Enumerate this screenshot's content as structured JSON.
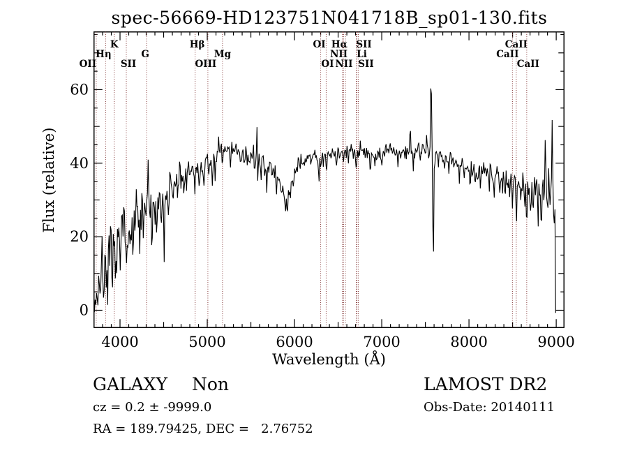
{
  "chart_data": {
    "type": "line",
    "title": "spec-56669-HD123751N041718B_sp01-130.fits",
    "xlabel": "Wavelength (Å)",
    "ylabel": "Flux (relative)",
    "xlim": [
      3702,
      9089
    ],
    "ylim": [
      -4.7,
      75.7
    ],
    "xticks": [
      4000,
      5000,
      6000,
      7000,
      8000,
      9000
    ],
    "yticks": [
      0,
      20,
      40,
      60
    ],
    "x_minor_step": 100,
    "x_medium_step": 500,
    "y_minor_step": 5,
    "y_medium_step": 10,
    "grid": false,
    "legend": "none",
    "colors": {
      "spectrum": "#000000",
      "axes": "#000000",
      "line_markers": "#833737",
      "background": "#ffffff"
    },
    "spectral_lines": [
      {
        "label": "OII",
        "wavelength": 3727,
        "row": 3,
        "dx": -12
      },
      {
        "label": "Hη",
        "wavelength": 3835,
        "row": 2,
        "dx": -3
      },
      {
        "label": "K",
        "wavelength": 3934,
        "row": 1,
        "dx": 0
      },
      {
        "label": "SII",
        "wavelength": 4072,
        "row": 3,
        "dx": 3
      },
      {
        "label": "G",
        "wavelength": 4305,
        "row": 2,
        "dx": -2
      },
      {
        "label": "Hβ",
        "wavelength": 4861,
        "row": 1,
        "dx": 3
      },
      {
        "label": "OIII",
        "wavelength": 5007,
        "row": 3,
        "dx": -3
      },
      {
        "label": "Mg",
        "wavelength": 5175,
        "row": 2,
        "dx": 0
      },
      {
        "label": "OI",
        "wavelength": 6300,
        "row": 1,
        "dx": -2
      },
      {
        "label": "OI",
        "wavelength": 6363,
        "row": 3,
        "dx": 2
      },
      {
        "label": "NII",
        "wavelength": 6548,
        "row": 2,
        "dx": -5
      },
      {
        "label": "Hα",
        "wavelength": 6563,
        "row": 1,
        "dx": -6
      },
      {
        "label": "NII",
        "wavelength": 6583,
        "row": 3,
        "dx": -2
      },
      {
        "label": "Li",
        "wavelength": 6708,
        "row": 2,
        "dx": 8
      },
      {
        "label": "SII",
        "wavelength": 6716,
        "row": 1,
        "dx": 10
      },
      {
        "label": "SII",
        "wavelength": 6731,
        "row": 3,
        "dx": 11
      },
      {
        "label": "CaII",
        "wavelength": 8498,
        "row": 2,
        "dx": -7
      },
      {
        "label": "CaII",
        "wavelength": 8542,
        "row": 1,
        "dx": 0
      },
      {
        "label": "CaII",
        "wavelength": 8662,
        "row": 3,
        "dx": 2
      }
    ],
    "spectrum": {
      "lambda_start": 3706,
      "lambda_end": 8995,
      "seed": 7,
      "continuum": [
        [
          3705,
          3
        ],
        [
          3720,
          7
        ],
        [
          3750,
          9
        ],
        [
          3800,
          12
        ],
        [
          3850,
          13
        ],
        [
          3900,
          14
        ],
        [
          3950,
          16
        ],
        [
          4000,
          18
        ],
        [
          4050,
          23
        ],
        [
          4100,
          21
        ],
        [
          4150,
          22
        ],
        [
          4200,
          24
        ],
        [
          4250,
          25
        ],
        [
          4300,
          27
        ],
        [
          4350,
          28
        ],
        [
          4400,
          28
        ],
        [
          4450,
          30
        ],
        [
          4500,
          31
        ],
        [
          4550,
          32
        ],
        [
          4600,
          34
        ],
        [
          4650,
          35
        ],
        [
          4700,
          36
        ],
        [
          4750,
          37
        ],
        [
          4800,
          37
        ],
        [
          4850,
          38
        ],
        [
          4900,
          38
        ],
        [
          4950,
          39
        ],
        [
          5000,
          40
        ],
        [
          5050,
          40
        ],
        [
          5100,
          41
        ],
        [
          5150,
          43
        ],
        [
          5200,
          44
        ],
        [
          5250,
          44
        ],
        [
          5300,
          44
        ],
        [
          5350,
          43
        ],
        [
          5400,
          42
        ],
        [
          5450,
          42
        ],
        [
          5500,
          42
        ],
        [
          5550,
          41
        ],
        [
          5600,
          41
        ],
        [
          5650,
          40
        ],
        [
          5700,
          39
        ],
        [
          5750,
          38
        ],
        [
          5800,
          36
        ],
        [
          5850,
          34
        ],
        [
          5900,
          30
        ],
        [
          5950,
          31
        ],
        [
          6000,
          37
        ],
        [
          6050,
          40
        ],
        [
          6100,
          41
        ],
        [
          6150,
          41
        ],
        [
          6200,
          42
        ],
        [
          6250,
          42
        ],
        [
          6300,
          40
        ],
        [
          6350,
          41
        ],
        [
          6400,
          42
        ],
        [
          6450,
          43
        ],
        [
          6500,
          43
        ],
        [
          6600,
          43
        ],
        [
          6700,
          43
        ],
        [
          6800,
          44
        ],
        [
          6900,
          42
        ],
        [
          7000,
          43
        ],
        [
          7100,
          44
        ],
        [
          7200,
          43
        ],
        [
          7300,
          43
        ],
        [
          7400,
          44
        ],
        [
          7500,
          44
        ],
        [
          7600,
          43
        ],
        [
          7700,
          42
        ],
        [
          7800,
          41
        ],
        [
          7900,
          40
        ],
        [
          8000,
          39
        ],
        [
          8100,
          38
        ],
        [
          8200,
          38
        ],
        [
          8300,
          37
        ],
        [
          8400,
          36
        ],
        [
          8500,
          36
        ],
        [
          8600,
          35
        ],
        [
          8700,
          34
        ],
        [
          8800,
          33
        ],
        [
          8900,
          33
        ],
        [
          9000,
          33
        ]
      ],
      "noise_segments": [
        [
          3702,
          3800,
          4.2
        ],
        [
          3800,
          3950,
          3.8
        ],
        [
          3950,
          4300,
          3.3
        ],
        [
          4300,
          4600,
          2.5
        ],
        [
          4600,
          4900,
          1.8
        ],
        [
          4900,
          5500,
          1.2
        ],
        [
          5500,
          6000,
          1.6
        ],
        [
          6000,
          6400,
          1.3
        ],
        [
          6400,
          7500,
          1.1
        ],
        [
          7500,
          8100,
          1.2
        ],
        [
          8100,
          8600,
          1.6
        ],
        [
          8600,
          9000,
          2.8
        ]
      ],
      "features": [
        [
          3718,
          -6,
          10
        ],
        [
          3742,
          -8,
          10
        ],
        [
          3778,
          -7,
          10
        ],
        [
          3815,
          -7,
          10
        ],
        [
          3858,
          -8,
          10
        ],
        [
          3912,
          -11,
          10
        ],
        [
          3958,
          -8,
          10
        ],
        [
          4005,
          -7,
          10
        ],
        [
          4046,
          6,
          10
        ],
        [
          4082,
          -7,
          10
        ],
        [
          4110,
          -8,
          10
        ],
        [
          4145,
          -9,
          10
        ],
        [
          4190,
          6,
          10
        ],
        [
          4225,
          -7,
          10
        ],
        [
          4270,
          -7,
          10
        ],
        [
          4320,
          19,
          9
        ],
        [
          4345,
          -8,
          9
        ],
        [
          4365,
          -12,
          9
        ],
        [
          4420,
          -7,
          10
        ],
        [
          4472,
          -8,
          10
        ],
        [
          4508,
          -20,
          9
        ],
        [
          4556,
          -7,
          10
        ],
        [
          4608,
          -6,
          10
        ],
        [
          4660,
          -6,
          10
        ],
        [
          4686,
          5,
          9
        ],
        [
          4730,
          -5,
          10
        ],
        [
          4762,
          -6,
          10
        ],
        [
          4830,
          5,
          9
        ],
        [
          4861,
          -5,
          12
        ],
        [
          4910,
          -4,
          10
        ],
        [
          4960,
          -4,
          10
        ],
        [
          5015,
          -4,
          10
        ],
        [
          5060,
          -5,
          10
        ],
        [
          5090,
          -8,
          10
        ],
        [
          5130,
          4,
          9
        ],
        [
          5175,
          -4,
          12
        ],
        [
          5265,
          -4,
          10
        ],
        [
          5380,
          -4,
          10
        ],
        [
          5460,
          -5,
          10
        ],
        [
          5570,
          7,
          9
        ],
        [
          5582,
          -7,
          9
        ],
        [
          5620,
          -4,
          10
        ],
        [
          5680,
          -4,
          10
        ],
        [
          5740,
          -5,
          10
        ],
        [
          5790,
          -4,
          10
        ],
        [
          5893,
          -5,
          12
        ],
        [
          5990,
          -4,
          10
        ],
        [
          6060,
          -3,
          10
        ],
        [
          6180,
          -3,
          10
        ],
        [
          6280,
          -6,
          10
        ],
        [
          6368,
          -4,
          10
        ],
        [
          6480,
          -3,
          10
        ],
        [
          6563,
          -3,
          12
        ],
        [
          6620,
          -3,
          10
        ],
        [
          6710,
          -3,
          10
        ],
        [
          6867,
          -6,
          10
        ],
        [
          6920,
          -4,
          10
        ],
        [
          7000,
          -4,
          10
        ],
        [
          7120,
          -3,
          10
        ],
        [
          7186,
          -5,
          10
        ],
        [
          7327,
          8,
          9
        ],
        [
          7360,
          -4,
          10
        ],
        [
          7440,
          -3,
          10
        ],
        [
          7516,
          4,
          9
        ],
        [
          7565,
          29,
          9
        ],
        [
          7590,
          -40,
          10
        ],
        [
          7605,
          -8,
          9
        ],
        [
          7650,
          -4,
          10
        ],
        [
          7720,
          -4,
          10
        ],
        [
          7770,
          -5,
          10
        ],
        [
          7830,
          -4,
          10
        ],
        [
          7890,
          -4,
          10
        ],
        [
          7950,
          -4,
          10
        ],
        [
          8015,
          -5,
          10
        ],
        [
          8070,
          -4,
          10
        ],
        [
          8130,
          -4,
          10
        ],
        [
          8180,
          -4,
          10
        ],
        [
          8230,
          -8,
          10
        ],
        [
          8290,
          -5,
          10
        ],
        [
          8350,
          -6,
          10
        ],
        [
          8415,
          -5,
          10
        ],
        [
          8470,
          -6,
          10
        ],
        [
          8498,
          -8,
          10
        ],
        [
          8542,
          -16,
          9
        ],
        [
          8590,
          -6,
          10
        ],
        [
          8630,
          -5,
          10
        ],
        [
          8662,
          -10,
          9
        ],
        [
          8700,
          -7,
          10
        ],
        [
          8740,
          -9,
          10
        ],
        [
          8790,
          -12,
          10
        ],
        [
          8830,
          -10,
          10
        ],
        [
          8875,
          13,
          9
        ],
        [
          8905,
          -8,
          9
        ],
        [
          8930,
          -6,
          9
        ],
        [
          8955,
          22,
          9
        ],
        [
          8975,
          -10,
          9
        ],
        [
          8993,
          -33,
          10
        ]
      ]
    }
  },
  "footer": {
    "classification": "GALAXY",
    "subclass": "Non",
    "cz_line": "cz = 0.2 ± -9999.0",
    "radec_line": "RA = 189.79425, DEC =   2.76752",
    "survey": "LAMOST DR2",
    "obs_date_line": "Obs-Date: 20140111"
  }
}
